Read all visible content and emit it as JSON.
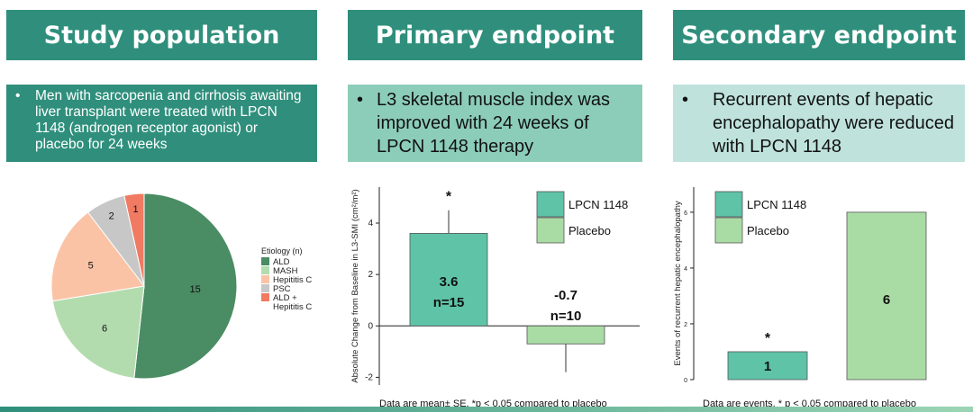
{
  "panels": {
    "study": {
      "title": "Study population",
      "bullet": "•",
      "text": "Men with sarcopenia and cirrhosis awaiting liver transplant were treated with LPCN 1148 (androgen receptor agonist) or placebo for 24 weeks"
    },
    "primary": {
      "title": "Primary endpoint",
      "bullet": "•",
      "text": "L3 skeletal muscle index was improved with 24 weeks of LPCN 1148 therapy"
    },
    "secondary": {
      "title": "Secondary endpoint",
      "bullet": "•",
      "text": "Recurrent events of hepatic encephalopathy were reduced with LPCN 1148"
    }
  },
  "chart_data": [
    {
      "type": "pie",
      "legend_title": "Etiology (n)",
      "legend_position": "right",
      "slices": [
        {
          "label": "ALD",
          "value": 15,
          "color": "#4a8c63"
        },
        {
          "label": "MASH",
          "value": 6,
          "color": "#b3dcae"
        },
        {
          "label": "Hepititis C",
          "value": 5,
          "color": "#fbc3a6"
        },
        {
          "label": "PSC",
          "value": 2,
          "color": "#c7c7c7"
        },
        {
          "label": "ALD +\nHepititis C",
          "value": 1,
          "color": "#f07a62"
        }
      ]
    },
    {
      "type": "bar",
      "ylabel": "Absolute Change from Baseline in L3-SMI (cm²/m²)",
      "ylim": [
        -2.3,
        5.4
      ],
      "yticks": [
        -2,
        0,
        2,
        4
      ],
      "grid": false,
      "legend_position": "top-right",
      "series": [
        {
          "name": "LPCN 1148",
          "value": 3.6,
          "se": 0.9,
          "label": "3.6",
          "n_label": "n=15",
          "annotation": "*",
          "color": "#5ec3a7"
        },
        {
          "name": "Placebo",
          "value": -0.7,
          "se": 1.1,
          "label": "-0.7",
          "n_label": "n=10",
          "color": "#a9dca5"
        }
      ],
      "footnote": "Data are mean± SE. *p < 0.05 compared to placebo"
    },
    {
      "type": "bar",
      "ylabel": "Events of recurrent hepatic encephalopathy",
      "ylim": [
        0,
        6.9
      ],
      "yticks": [
        0,
        2,
        4,
        6
      ],
      "grid": false,
      "legend_position": "top-left",
      "series": [
        {
          "name": "LPCN 1148",
          "value": 1,
          "label": "1",
          "annotation": "*",
          "color": "#5ec3a7"
        },
        {
          "name": "Placebo",
          "value": 6,
          "label": "6",
          "color": "#a9dca5"
        }
      ],
      "footnote": "Data are events. * p < 0.05 compared to placebo"
    }
  ]
}
